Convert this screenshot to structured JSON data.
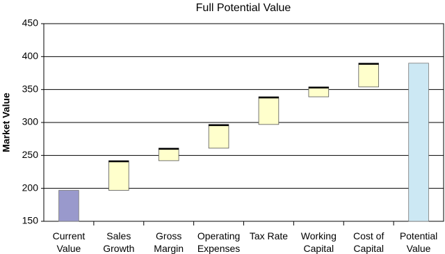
{
  "chart_data": {
    "type": "waterfall",
    "title": "Full Potential Value",
    "y_label": "Market Value",
    "categories": [
      "Current Value",
      "Sales Growth",
      "Gross Margin",
      "Operating Expenses",
      "Tax Rate",
      "Working Capital",
      "Cost of Capital",
      "Potential Value"
    ],
    "values": [
      197,
      45,
      19,
      36,
      42,
      15,
      36,
      390
    ],
    "colors": [
      "#9999cc",
      "#ffffcc",
      "#ffffcc",
      "#ffffcc",
      "#ffffcc",
      "#ffffcc",
      "#ffffcc",
      "#cce8f4"
    ],
    "ylim": [
      150,
      450
    ],
    "yticks": [
      150,
      200,
      250,
      300,
      350,
      400,
      450
    ],
    "grid": true
  }
}
